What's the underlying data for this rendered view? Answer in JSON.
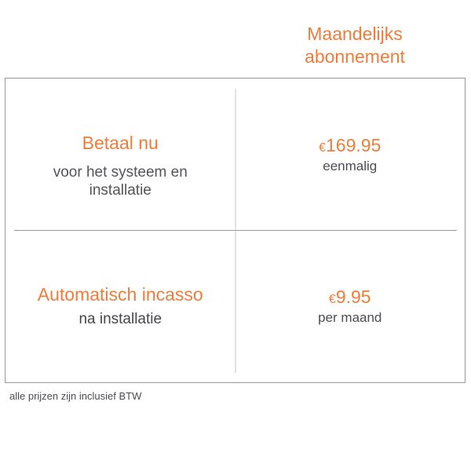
{
  "colors": {
    "accent_orange": "#ef7d3a",
    "text_dark": "#54555a",
    "table_border": "#9a9a9a",
    "column_divider": "#e3e3e3"
  },
  "header": {
    "title_line1": "Maandelijks",
    "title_line2": "abonnement"
  },
  "table": {
    "rows": [
      {
        "label": "Betaal nu",
        "sublabel": "voor het systeem en installatie",
        "price_currency": "€",
        "price_value": "169.95",
        "price_note": "eenmalig"
      },
      {
        "label": "Automatisch incasso",
        "sublabel": "na installatie",
        "price_currency": "€",
        "price_value": "9.95",
        "price_note": "per maand"
      }
    ]
  },
  "footer": {
    "note": "alle prijzen zijn inclusief BTW"
  }
}
